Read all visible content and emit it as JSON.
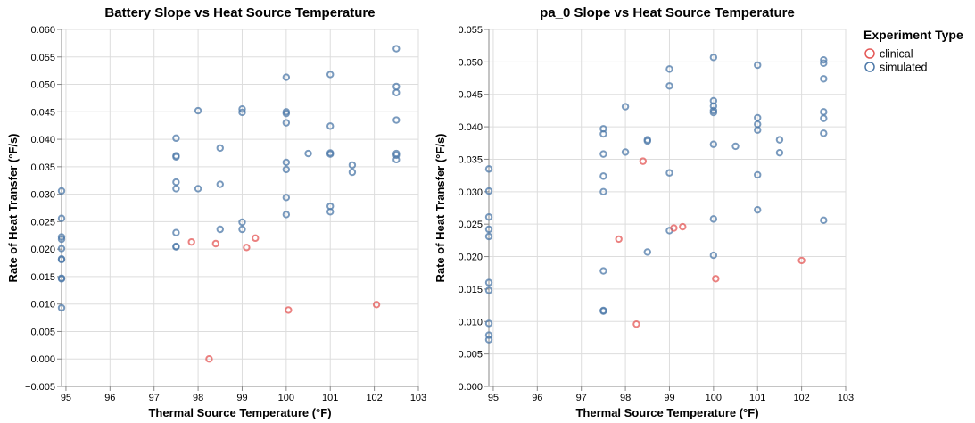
{
  "legend": {
    "title": "Experiment Type",
    "items": [
      {
        "label": "clinical",
        "color": "#e45756"
      },
      {
        "label": "simulated",
        "color": "#4c78a8"
      }
    ]
  },
  "chart_data": [
    {
      "type": "scatter",
      "title": "Battery Slope vs Heat Source Temperature",
      "xlabel": "Thermal Source Temperature (°F)",
      "ylabel": "Rate of Heat Transfer (°F/s)",
      "xlim": [
        94.9,
        103
      ],
      "ylim": [
        -0.005,
        0.06
      ],
      "xticks": [
        95,
        96,
        97,
        98,
        99,
        100,
        101,
        102,
        103
      ],
      "yticks": [
        -0.005,
        0.0,
        0.005,
        0.01,
        0.015,
        0.02,
        0.025,
        0.03,
        0.035,
        0.04,
        0.045,
        0.05,
        0.055,
        0.06
      ],
      "ytick_labels": [
        "−0.005",
        "0.000",
        "0.005",
        "0.010",
        "0.015",
        "0.020",
        "0.025",
        "0.030",
        "0.035",
        "0.040",
        "0.045",
        "0.050",
        "0.055",
        "0.060"
      ],
      "grid": true,
      "series": [
        {
          "name": "clinical",
          "color": "#e45756",
          "points": [
            [
              97.85,
              0.0213
            ],
            [
              98.4,
              0.021
            ],
            [
              99.1,
              0.0203
            ],
            [
              99.3,
              0.022
            ],
            [
              100.05,
              0.0089
            ],
            [
              98.25,
              0.0
            ],
            [
              102.05,
              0.0099
            ]
          ]
        },
        {
          "name": "simulated",
          "color": "#4c78a8",
          "points": [
            [
              94.9,
              0.0306
            ],
            [
              94.9,
              0.0256
            ],
            [
              94.9,
              0.0222
            ],
            [
              94.9,
              0.0218
            ],
            [
              94.9,
              0.0201
            ],
            [
              94.9,
              0.0182
            ],
            [
              94.9,
              0.0181
            ],
            [
              94.9,
              0.0147
            ],
            [
              94.9,
              0.0146
            ],
            [
              94.9,
              0.0093
            ],
            [
              97.5,
              0.0402
            ],
            [
              97.5,
              0.037
            ],
            [
              97.5,
              0.0368
            ],
            [
              97.5,
              0.0322
            ],
            [
              97.5,
              0.031
            ],
            [
              97.5,
              0.023
            ],
            [
              97.5,
              0.0205
            ],
            [
              97.5,
              0.0204
            ],
            [
              98.0,
              0.0452
            ],
            [
              98.0,
              0.031
            ],
            [
              98.5,
              0.0384
            ],
            [
              98.5,
              0.0318
            ],
            [
              98.5,
              0.0236
            ],
            [
              99.0,
              0.0455
            ],
            [
              99.0,
              0.0449
            ],
            [
              99.0,
              0.0249
            ],
            [
              99.0,
              0.0236
            ],
            [
              100.0,
              0.0513
            ],
            [
              100.0,
              0.045
            ],
            [
              100.0,
              0.0447
            ],
            [
              100.0,
              0.043
            ],
            [
              100.0,
              0.0358
            ],
            [
              100.0,
              0.0345
            ],
            [
              100.0,
              0.0294
            ],
            [
              100.0,
              0.0263
            ],
            [
              100.5,
              0.0374
            ],
            [
              101.0,
              0.0518
            ],
            [
              101.0,
              0.0424
            ],
            [
              101.0,
              0.0375
            ],
            [
              101.0,
              0.0373
            ],
            [
              101.0,
              0.0278
            ],
            [
              101.0,
              0.0268
            ],
            [
              101.5,
              0.0353
            ],
            [
              101.5,
              0.034
            ],
            [
              102.5,
              0.0565
            ],
            [
              102.5,
              0.0496
            ],
            [
              102.5,
              0.0485
            ],
            [
              102.5,
              0.0435
            ],
            [
              102.5,
              0.0374
            ],
            [
              102.5,
              0.0371
            ],
            [
              102.5,
              0.0363
            ]
          ]
        }
      ]
    },
    {
      "type": "scatter",
      "title": "pa_0 Slope vs Heat Source Temperature",
      "xlabel": "Thermal Source Temperature (°F)",
      "ylabel": "Rate of Heat Transfer (°F/s)",
      "xlim": [
        94.9,
        103
      ],
      "ylim": [
        0.0,
        0.055
      ],
      "xticks": [
        95,
        96,
        97,
        98,
        99,
        100,
        101,
        102,
        103
      ],
      "yticks": [
        0.0,
        0.005,
        0.01,
        0.015,
        0.02,
        0.025,
        0.03,
        0.035,
        0.04,
        0.045,
        0.05,
        0.055
      ],
      "ytick_labels": [
        "0.000",
        "0.005",
        "0.010",
        "0.015",
        "0.020",
        "0.025",
        "0.030",
        "0.035",
        "0.040",
        "0.045",
        "0.050",
        "0.055"
      ],
      "grid": true,
      "series": [
        {
          "name": "clinical",
          "color": "#e45756",
          "points": [
            [
              97.85,
              0.0227
            ],
            [
              98.4,
              0.0347
            ],
            [
              99.1,
              0.0244
            ],
            [
              99.3,
              0.0246
            ],
            [
              98.25,
              0.0096
            ],
            [
              100.05,
              0.0166
            ],
            [
              102.0,
              0.0194
            ]
          ]
        },
        {
          "name": "simulated",
          "color": "#4c78a8",
          "points": [
            [
              94.9,
              0.0335
            ],
            [
              94.9,
              0.0301
            ],
            [
              94.9,
              0.0261
            ],
            [
              94.9,
              0.0242
            ],
            [
              94.9,
              0.0231
            ],
            [
              94.9,
              0.016
            ],
            [
              94.9,
              0.0148
            ],
            [
              94.9,
              0.0097
            ],
            [
              94.9,
              0.0079
            ],
            [
              94.9,
              0.0072
            ],
            [
              97.5,
              0.0397
            ],
            [
              97.5,
              0.0389
            ],
            [
              97.5,
              0.0358
            ],
            [
              97.5,
              0.0324
            ],
            [
              97.5,
              0.03
            ],
            [
              97.5,
              0.0178
            ],
            [
              97.5,
              0.0117
            ],
            [
              97.5,
              0.0116
            ],
            [
              98.0,
              0.0431
            ],
            [
              98.0,
              0.0361
            ],
            [
              98.5,
              0.038
            ],
            [
              98.5,
              0.0378
            ],
            [
              98.5,
              0.0207
            ],
            [
              99.0,
              0.0489
            ],
            [
              99.0,
              0.0463
            ],
            [
              99.0,
              0.0329
            ],
            [
              99.0,
              0.024
            ],
            [
              100.0,
              0.0507
            ],
            [
              100.0,
              0.044
            ],
            [
              100.0,
              0.0432
            ],
            [
              100.0,
              0.0425
            ],
            [
              100.0,
              0.0422
            ],
            [
              100.0,
              0.0373
            ],
            [
              100.0,
              0.0258
            ],
            [
              100.0,
              0.0202
            ],
            [
              100.5,
              0.037
            ],
            [
              101.0,
              0.0495
            ],
            [
              101.0,
              0.0414
            ],
            [
              101.0,
              0.0404
            ],
            [
              101.0,
              0.0395
            ],
            [
              101.0,
              0.0326
            ],
            [
              101.0,
              0.0272
            ],
            [
              101.5,
              0.038
            ],
            [
              101.5,
              0.036
            ],
            [
              102.5,
              0.0503
            ],
            [
              102.5,
              0.0498
            ],
            [
              102.5,
              0.0474
            ],
            [
              102.5,
              0.0423
            ],
            [
              102.5,
              0.0413
            ],
            [
              102.5,
              0.039
            ],
            [
              102.5,
              0.0256
            ]
          ]
        }
      ]
    }
  ]
}
